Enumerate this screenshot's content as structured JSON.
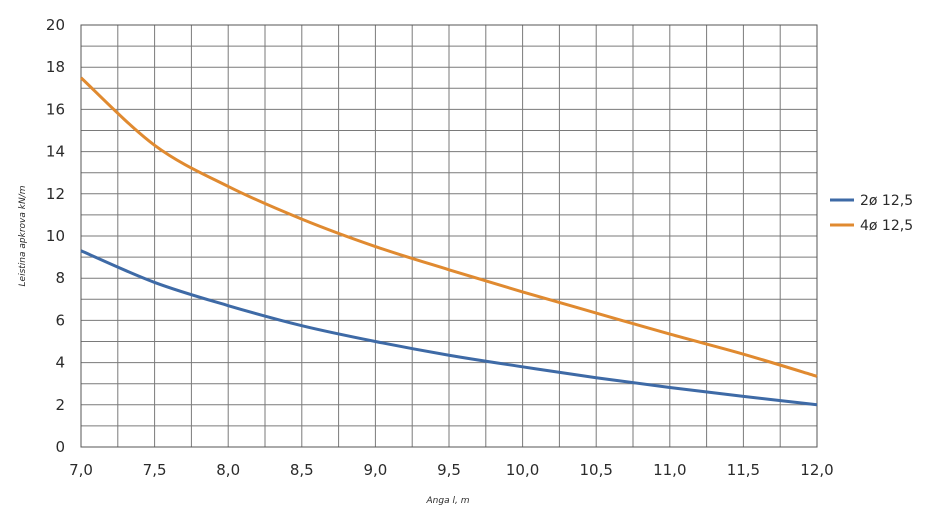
{
  "chart_data": {
    "type": "line",
    "xlabel": "Anga l, m",
    "ylabel": "Leistina apkrova kN/m",
    "xlim": [
      7.0,
      12.0
    ],
    "ylim": [
      0,
      20
    ],
    "x_ticks": [
      "7,0",
      "7,5",
      "8,0",
      "8,5",
      "9,0",
      "9,5",
      "10,0",
      "10,5",
      "11,0",
      "11,5",
      "12,0"
    ],
    "y_ticks": [
      "0",
      "2",
      "4",
      "6",
      "8",
      "10",
      "12",
      "14",
      "16",
      "18",
      "20"
    ],
    "grid": true,
    "legend_position": "right",
    "x": [
      7.0,
      7.5,
      8.0,
      8.5,
      9.0,
      9.5,
      10.0,
      10.5,
      11.0,
      11.5,
      12.0
    ],
    "series": [
      {
        "name": "2ø 12,5",
        "color": "#3e6aa6",
        "values": [
          9.3,
          7.8,
          6.7,
          5.75,
          5.0,
          4.35,
          3.8,
          3.28,
          2.82,
          2.4,
          2.0
        ]
      },
      {
        "name": "4ø 12,5",
        "color": "#e08a30",
        "values": [
          17.5,
          14.3,
          12.35,
          10.8,
          9.5,
          8.4,
          7.35,
          6.35,
          5.35,
          4.4,
          3.35
        ]
      }
    ]
  }
}
